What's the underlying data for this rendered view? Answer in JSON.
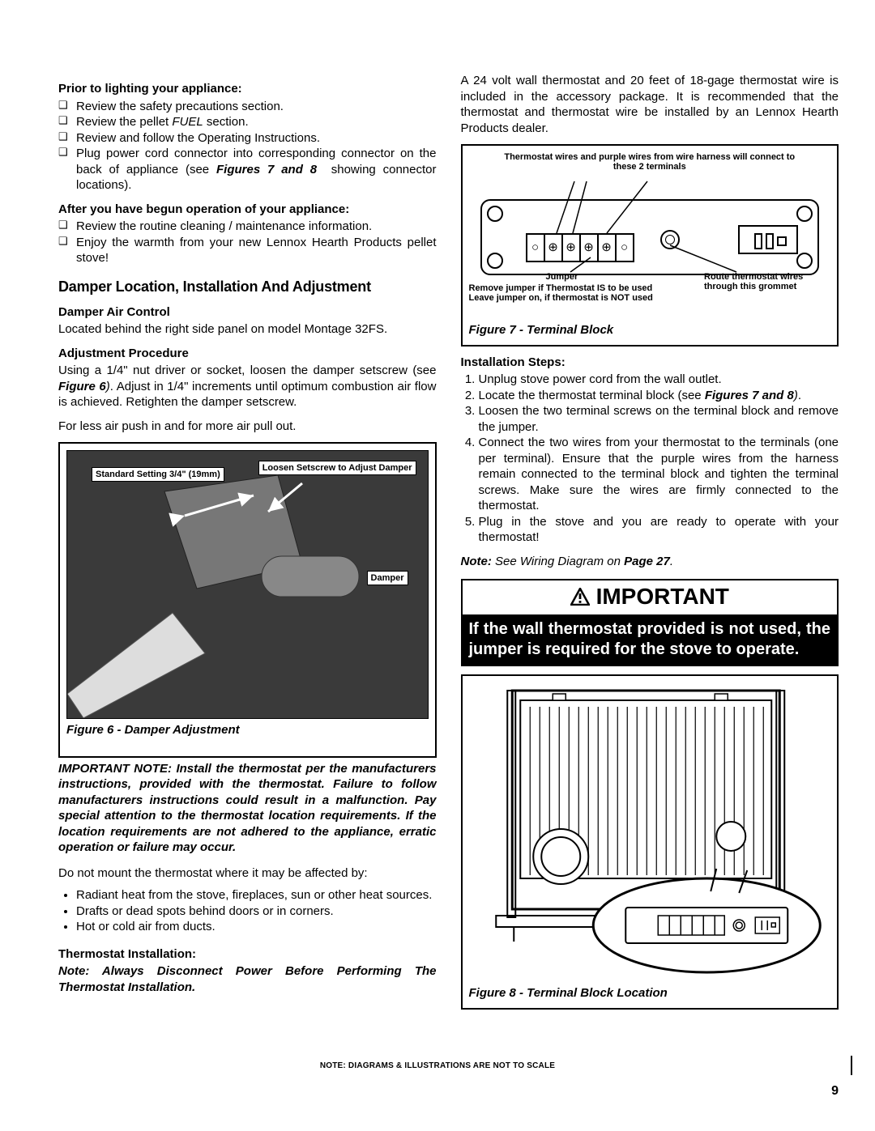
{
  "left": {
    "prior_head": "Prior to lighting your appliance:",
    "prior": [
      "Review the safety precautions section.",
      "Review the pellet <span class=\"italic\">FUEL</span> section.",
      "Review and follow the Operating Instructions.",
      "Plug power cord connector into corresponding connector on the back of appliance (see <span class=\"bold italic\">Figures 7 and 8</span>&nbsp;&nbsp;showing connector locations)."
    ],
    "after_head": "After you have begun operation of your appliance:",
    "after": [
      "Review the routine cleaning / maintenance information.",
      "Enjoy the warmth from your new Lennox Hearth Products pellet stove!"
    ],
    "section_head": "Damper Location, Installation And Adjustment",
    "dac_head": "Damper Air Control",
    "dac_body": "Located behind the right side panel on model Montage 32FS.",
    "adj_head": "Adjustment Procedure",
    "adj_body": "Using a 1/4\" nut driver or socket, loosen the damper setscrew (see <span class=\"bold italic\">Figure 6</span><span class=\"italic\">)</span>. Adjust in 1/4\" increments until optimum combustion air flow is achieved.  Retighten the damper setscrew.",
    "adj_body2": "For less air push in and for more air pull out.",
    "fig6": {
      "label1": "Standard Setting\n3/4\" (19mm)",
      "label2": "Loosen Setscrew\nto Adjust Damper",
      "label3": "Damper",
      "caption": "Figure 6 - Damper Adjustment"
    },
    "imp_note": "IMPORTANT NOTE:  Install the thermostat per the manufacturers instructions, provided with the thermostat.  Failure to follow manufacturers instructions could result in a malfunction. Pay special attention to the thermostat location requirements. If the location requirements are not adhered to the appliance, erratic operation or failure may occur.",
    "do_not": "Do not mount the thermostat where it may be affected by:",
    "bullets": [
      "Radiant heat from the stove, fireplaces, sun or other heat sources.",
      "Drafts or dead spots behind doors or in corners.",
      "Hot or cold air from ducts."
    ],
    "therm_head": "Thermostat Installation:",
    "therm_note": "Note: Always Disconnect Power Before Performing The Thermostat Installation."
  },
  "right": {
    "intro": "A 24 volt wall thermostat and 20 feet of 18-gage thermostat wire is included in the accessory package. It is recommended that the thermostat and thermostat wire be installed by an Lennox Hearth Products dealer.",
    "fig7": {
      "top_text": "Thermostat wires and purple wires from wire harness will connect to these 2 terminals",
      "jumper": "Jumper",
      "route": "Route thermostat wires through this grommet",
      "remove": "Remove jumper if Thermostat IS to be used\nLeave jumper on, if thermostat is NOT used",
      "caption": "Figure 7 - Terminal Block"
    },
    "install_head": "Installation Steps:",
    "steps": [
      "Unplug stove power cord from the wall outlet.",
      "Locate the thermostat terminal block (see <span class=\"bold italic\">Figures 7 and 8</span><span class=\"italic\">)</span>.",
      "Loosen the two terminal screws on the terminal block and remove the jumper.",
      "Connect the two wires from your thermostat to the terminals (one per terminal). Ensure that the purple wires from the harness remain connected to the terminal block and tighten the terminal screws. Make sure the wires are firmly connected to the thermostat.",
      "Plug in the stove and you are ready to operate with your thermostat!"
    ],
    "wiring_note": "<span class=\"bold\">Note:</span> See Wiring Diagram on <span class=\"bold\">Page 27</span>.",
    "important_label": "IMPORTANT",
    "important_body": "If the wall thermostat provided is not used, the jumper is required for the stove to operate.",
    "fig8_caption": "Figure 8 - Terminal Block Location"
  },
  "footer": "NOTE: DIAGRAMS & ILLUSTRATIONS ARE NOT TO SCALE",
  "page_num": "9"
}
